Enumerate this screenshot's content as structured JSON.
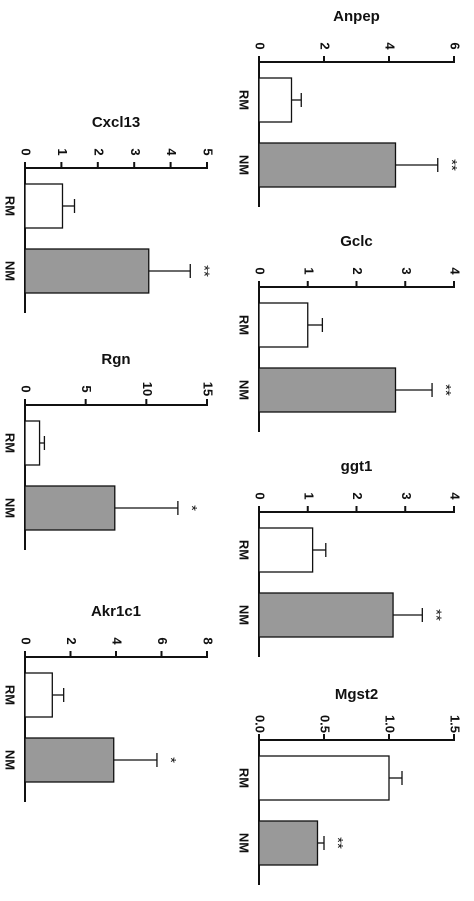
{
  "chart_data": [
    {
      "type": "bar",
      "title": "Anpep",
      "categories": [
        "RM",
        "NM"
      ],
      "values": [
        1.0,
        4.2
      ],
      "errors": [
        0.3,
        1.3
      ],
      "significance": [
        null,
        "**"
      ],
      "colors": [
        "#ffffff",
        "#999999"
      ],
      "xlim": [
        0,
        6
      ],
      "xticks": [
        0,
        2,
        4,
        6
      ]
    },
    {
      "type": "bar",
      "title": "Gclc",
      "categories": [
        "RM",
        "NM"
      ],
      "values": [
        1.0,
        2.8
      ],
      "errors": [
        0.3,
        0.75
      ],
      "significance": [
        null,
        "**"
      ],
      "colors": [
        "#ffffff",
        "#999999"
      ],
      "xlim": [
        0,
        4
      ],
      "xticks": [
        0,
        1,
        2,
        3,
        4
      ]
    },
    {
      "type": "bar",
      "title": "ggt1",
      "categories": [
        "RM",
        "NM"
      ],
      "values": [
        1.1,
        2.75
      ],
      "errors": [
        0.27,
        0.6
      ],
      "significance": [
        null,
        "**"
      ],
      "colors": [
        "#ffffff",
        "#999999"
      ],
      "xlim": [
        0,
        4
      ],
      "xticks": [
        0,
        1,
        2,
        3,
        4
      ]
    },
    {
      "type": "bar",
      "title": "Mgst2",
      "categories": [
        "RM",
        "NM"
      ],
      "values": [
        1.0,
        0.45
      ],
      "errors": [
        0.1,
        0.05
      ],
      "significance": [
        null,
        "**"
      ],
      "colors": [
        "#ffffff",
        "#999999"
      ],
      "xlim": [
        0,
        1.5
      ],
      "xticks": [
        {
          "value": 0,
          "label": "0.0"
        },
        {
          "value": 0.5,
          "label": "0.5"
        },
        {
          "value": 1,
          "label": "1.0"
        },
        1.5
      ]
    },
    {
      "type": "bar",
      "title": "Cxcl13",
      "categories": [
        "RM",
        "NM"
      ],
      "values": [
        1.03,
        3.4
      ],
      "errors": [
        0.33,
        1.14
      ],
      "significance": [
        null,
        "**"
      ],
      "colors": [
        "#ffffff",
        "#999999"
      ],
      "xlim": [
        0,
        5
      ],
      "xticks": [
        0,
        1,
        2,
        3,
        4,
        5
      ]
    },
    {
      "type": "bar",
      "title": "Rgn",
      "categories": [
        "RM",
        "NM"
      ],
      "values": [
        1.2,
        7.4
      ],
      "errors": [
        0.4,
        5.2
      ],
      "significance": [
        null,
        "*"
      ],
      "colors": [
        "#ffffff",
        "#999999"
      ],
      "xlim": [
        0,
        15
      ],
      "xticks": [
        0,
        5,
        10,
        15
      ]
    },
    {
      "type": "bar",
      "title": "Akr1c1",
      "categories": [
        "RM",
        "NM"
      ],
      "values": [
        1.2,
        3.9
      ],
      "errors": [
        0.5,
        1.9
      ],
      "significance": [
        null,
        "*"
      ],
      "colors": [
        "#ffffff",
        "#999999"
      ],
      "xlim": [
        0,
        8
      ],
      "xticks": [
        0,
        2,
        4,
        6,
        8
      ]
    }
  ]
}
